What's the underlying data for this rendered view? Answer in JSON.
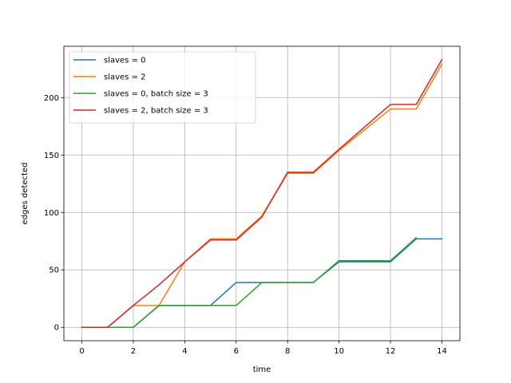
{
  "chart_data": {
    "type": "line",
    "title": "",
    "xlabel": "time",
    "ylabel": "edges detected",
    "xlim": [
      -0.7,
      14.7
    ],
    "ylim": [
      -11.65,
      244.65
    ],
    "xticks": [
      0,
      2,
      4,
      6,
      8,
      10,
      12,
      14
    ],
    "yticks": [
      0,
      50,
      100,
      150,
      200
    ],
    "grid": true,
    "legend_position": "top-left",
    "x": [
      0,
      1,
      2,
      3,
      4,
      5,
      6,
      7,
      8,
      9,
      10,
      12,
      13,
      14
    ],
    "series": [
      {
        "name": "slaves = 0",
        "color": "#1f77b4",
        "x": [
          0,
          1,
          2,
          3,
          4,
          5,
          6,
          7,
          8,
          9,
          10,
          12,
          13,
          14
        ],
        "values": [
          0,
          0,
          0,
          19,
          19,
          19,
          39,
          39,
          39,
          39,
          57,
          57,
          77,
          77
        ]
      },
      {
        "name": "slaves = 2",
        "color": "#ff7f0e",
        "x": [
          0,
          1,
          2,
          3,
          4,
          5,
          6,
          7,
          8,
          9,
          10,
          12,
          13,
          14
        ],
        "values": [
          0,
          0,
          19,
          19,
          57,
          77,
          77,
          97,
          134,
          134,
          154,
          190,
          190,
          229
        ]
      },
      {
        "name": "slaves = 0, batch size = 3",
        "color": "#2ca02c",
        "x": [
          0,
          1,
          2,
          3,
          4,
          5,
          6,
          7,
          8,
          9,
          10,
          12,
          13
        ],
        "values": [
          0,
          0,
          0,
          19,
          19,
          19,
          19,
          39,
          39,
          39,
          58,
          58,
          78
        ]
      },
      {
        "name": "slaves = 2, batch size = 3",
        "color": "#d62728",
        "x": [
          0,
          1,
          2,
          3,
          4,
          5,
          6,
          7,
          8,
          9,
          10,
          12,
          13,
          14
        ],
        "values": [
          0,
          0,
          19,
          37,
          57,
          76,
          76,
          96,
          135,
          135,
          155,
          194,
          194,
          233
        ]
      }
    ]
  }
}
